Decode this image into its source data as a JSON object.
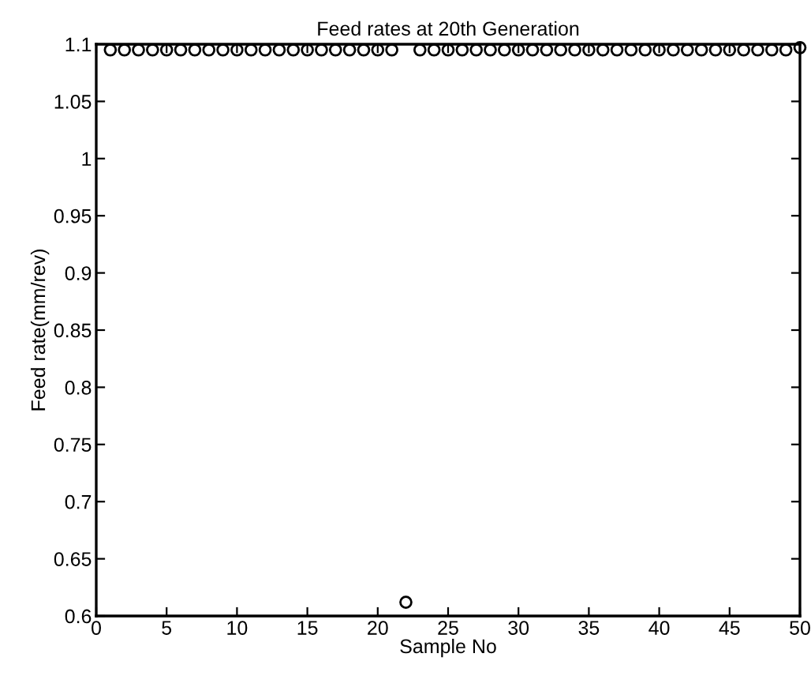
{
  "chart_data": {
    "type": "scatter",
    "title": "Feed rates at 20th Generation",
    "xlabel": "Sample No",
    "ylabel": "Feed rate(mm/rev)",
    "x": [
      1,
      2,
      3,
      4,
      5,
      6,
      7,
      8,
      9,
      10,
      11,
      12,
      13,
      14,
      15,
      16,
      17,
      18,
      19,
      20,
      21,
      22,
      23,
      24,
      25,
      26,
      27,
      28,
      29,
      30,
      31,
      32,
      33,
      34,
      35,
      36,
      37,
      38,
      39,
      40,
      41,
      42,
      43,
      44,
      45,
      46,
      47,
      48,
      49,
      50
    ],
    "series": [
      {
        "color": "#000000",
        "values": [
          1.095,
          1.095,
          1.095,
          1.095,
          1.095,
          1.095,
          1.095,
          1.095,
          1.095,
          1.095,
          1.095,
          1.095,
          1.095,
          1.095,
          1.095,
          1.095,
          1.095,
          1.095,
          1.095,
          1.095,
          1.095,
          0.612,
          1.095,
          1.095,
          1.095,
          1.095,
          1.095,
          1.095,
          1.095,
          1.095,
          1.095,
          1.095,
          1.095,
          1.095,
          1.095,
          1.095,
          1.095,
          1.095,
          1.095,
          1.095,
          1.095,
          1.095,
          1.095,
          1.095,
          1.095,
          1.095,
          1.095,
          1.095,
          1.095,
          1.097
        ]
      }
    ],
    "marker": "circle",
    "grid": false,
    "legend": false,
    "xlim": [
      0,
      50
    ],
    "xticks": [
      0,
      5,
      10,
      15,
      20,
      25,
      30,
      35,
      40,
      45,
      50
    ],
    "ylim": [
      0.6,
      1.1
    ],
    "yticks": [
      0.6,
      0.65,
      0.7,
      0.75,
      0.8,
      0.85,
      0.9,
      0.95,
      1,
      1.05,
      1.1
    ]
  }
}
